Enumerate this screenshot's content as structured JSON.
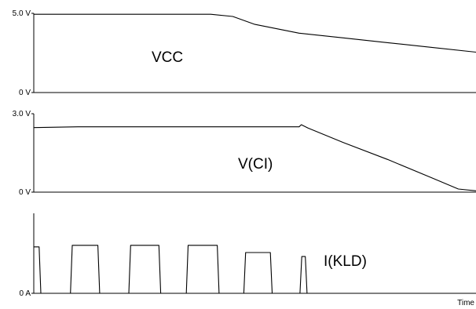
{
  "chart_data": [
    {
      "type": "line",
      "ylabel": "VCC",
      "yticks": [
        "5.0 V",
        "0 V"
      ],
      "ylim": [
        0,
        5.0
      ],
      "x": [
        0,
        10,
        20,
        30,
        40,
        45,
        50,
        60,
        70,
        80,
        90,
        100
      ],
      "series": [
        {
          "name": "VCC",
          "values": [
            4.94,
            4.94,
            4.94,
            4.94,
            4.94,
            4.8,
            4.3,
            3.75,
            3.45,
            3.15,
            2.85,
            2.55
          ]
        }
      ]
    },
    {
      "type": "line",
      "ylabel": "V(CI)",
      "yticks": [
        "3.0 V",
        "0 V"
      ],
      "ylim": [
        0,
        3.0
      ],
      "x": [
        0,
        10,
        20,
        30,
        40,
        50,
        60,
        60.5,
        62,
        70,
        80,
        90,
        96,
        100
      ],
      "series": [
        {
          "name": "V(CI)",
          "values": [
            2.47,
            2.5,
            2.5,
            2.5,
            2.5,
            2.5,
            2.5,
            2.58,
            2.45,
            1.9,
            1.25,
            0.55,
            0.12,
            0.05
          ]
        }
      ]
    },
    {
      "type": "line",
      "ylabel": "I(KLD)",
      "yticks": [
        "0 A"
      ],
      "xlabel": "Time",
      "ylim": [
        0,
        1.0
      ],
      "x": [
        0,
        1.2,
        1.6,
        8.3,
        8.7,
        14.5,
        14.9,
        21.5,
        21.9,
        28.3,
        28.7,
        34.5,
        34.9,
        41.5,
        41.9,
        47.5,
        47.9,
        53.5,
        53.9,
        60.2,
        60.6,
        61.4,
        61.8,
        100
      ],
      "series": [
        {
          "name": "I(KLD)",
          "values": [
            0.58,
            0.58,
            0.0,
            0.0,
            0.6,
            0.6,
            0.0,
            0.0,
            0.6,
            0.6,
            0.0,
            0.0,
            0.6,
            0.6,
            0.0,
            0.0,
            0.51,
            0.51,
            0.0,
            0.0,
            0.46,
            0.46,
            0.0,
            0.0
          ]
        }
      ]
    }
  ]
}
